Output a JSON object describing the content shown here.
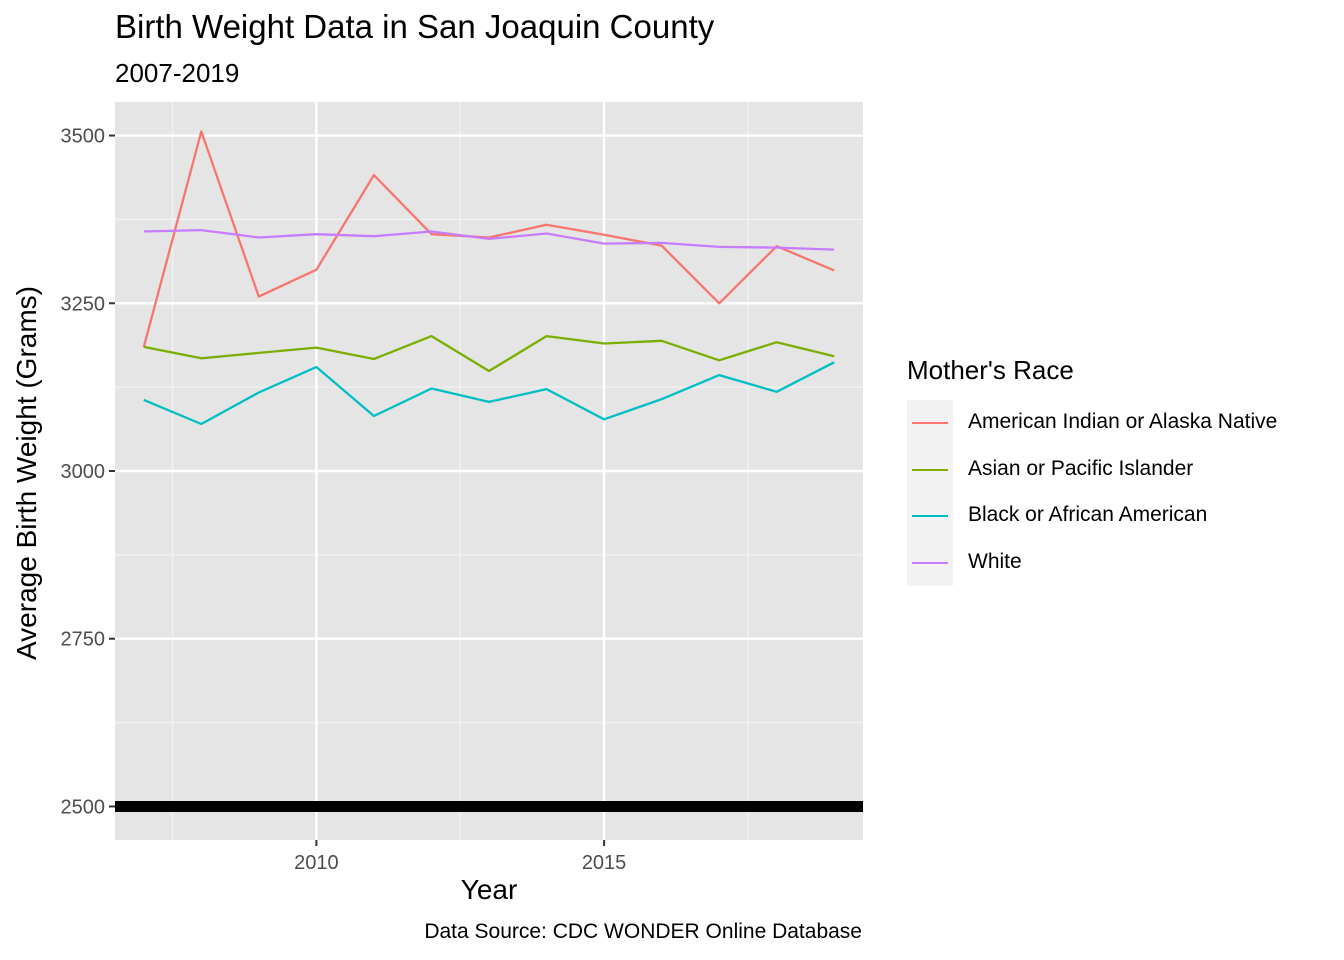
{
  "chart_data": {
    "type": "line",
    "title": "Birth Weight Data in San Joaquin County",
    "subtitle": "2007-2019",
    "xlabel": "Year",
    "ylabel": "Average Birth Weight (Grams)",
    "caption": "Data Source: CDC WONDER Online Database",
    "legend_title": "Mother's Race",
    "legend_position": "right",
    "xlim": [
      2006.5,
      2019.5
    ],
    "ylim": [
      2450,
      3550
    ],
    "x_ticks": [
      2010,
      2015
    ],
    "y_ticks": [
      2500,
      2750,
      3000,
      3250,
      3500
    ],
    "grid": true,
    "reference_line": {
      "y": 2500,
      "color": "#000000"
    },
    "x": [
      2007,
      2008,
      2009,
      2010,
      2011,
      2012,
      2013,
      2014,
      2015,
      2016,
      2017,
      2018,
      2019
    ],
    "series": [
      {
        "name": "American Indian or Alaska Native",
        "color": "#F8766D",
        "values": [
          3185,
          3506,
          3260,
          3300,
          3441,
          3353,
          3348,
          3367,
          3352,
          3336,
          3250,
          3335,
          3299
        ]
      },
      {
        "name": "Asian or Pacific Islander",
        "color": "#7CAE00",
        "values": [
          3185,
          3168,
          3176,
          3184,
          3167,
          3201,
          3149,
          3201,
          3190,
          3194,
          3165,
          3192,
          3171
        ]
      },
      {
        "name": "Black or African American",
        "color": "#00BFC4",
        "values": [
          3106,
          3070,
          3117,
          3155,
          3082,
          3123,
          3103,
          3122,
          3077,
          3107,
          3143,
          3118,
          3162
        ]
      },
      {
        "name": "White",
        "color": "#C77CFF",
        "values": [
          3357,
          3359,
          3348,
          3353,
          3350,
          3357,
          3346,
          3354,
          3339,
          3340,
          3334,
          3333,
          3330
        ]
      }
    ]
  }
}
